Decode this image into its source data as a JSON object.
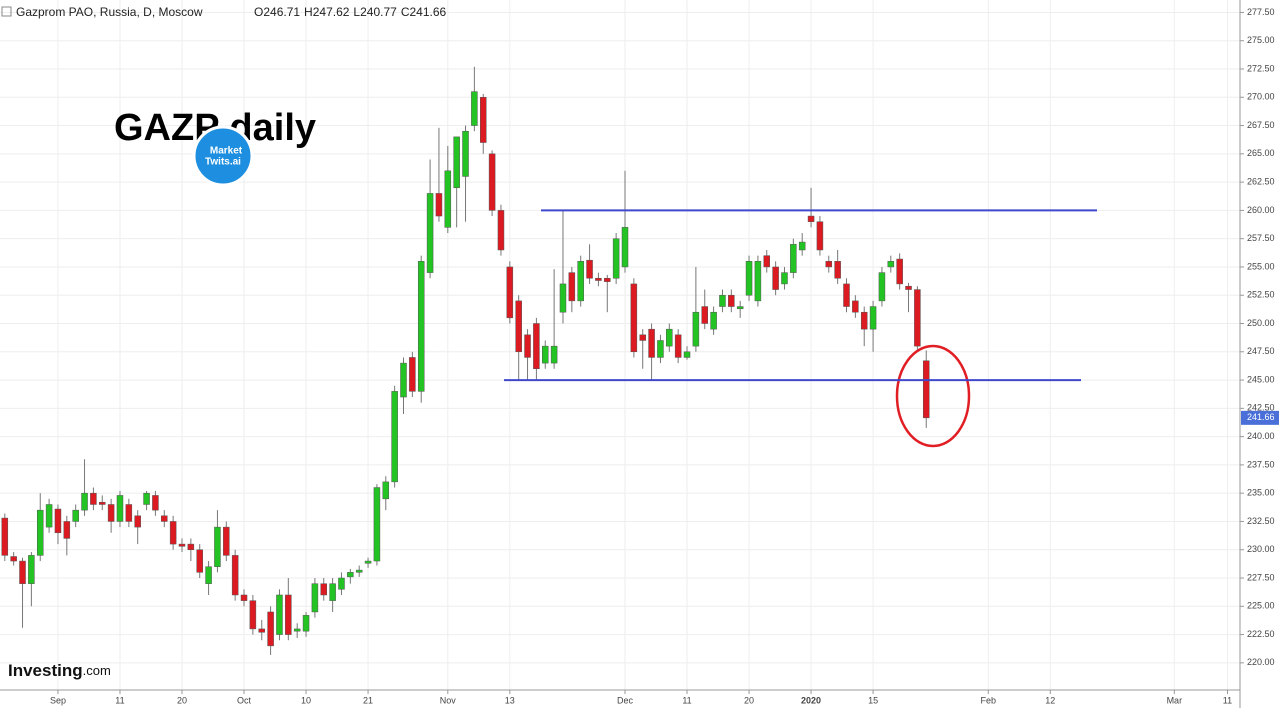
{
  "chart_data": {
    "type": "candlestick",
    "header": "Gazprom PAO, Russia, D, Moscow",
    "ohlc_legend": [
      "O",
      "H",
      "L",
      "C"
    ],
    "annotation": "GAZP daily",
    "logo": [
      "Market",
      "Twits.ai"
    ],
    "brand": [
      "Investing",
      ".com"
    ],
    "up_color": "#22c322",
    "down_color": "#dc1a22",
    "grid": true,
    "categories": [
      null,
      null,
      null,
      null,
      null,
      null,
      "Sep",
      null,
      null,
      null,
      null,
      null,
      null,
      "11",
      null,
      null,
      null,
      null,
      null,
      null,
      "20",
      null,
      null,
      null,
      null,
      null,
      null,
      "Oct",
      null,
      null,
      null,
      null,
      null,
      null,
      "10",
      null,
      null,
      null,
      null,
      null,
      null,
      "21",
      null,
      null,
      null,
      null,
      null,
      null,
      null,
      null,
      "Nov",
      null,
      null,
      null,
      null,
      null,
      null,
      "13",
      null,
      null,
      null,
      null,
      null,
      null,
      null,
      null,
      null,
      null,
      null,
      null,
      "Dec",
      null,
      null,
      null,
      null,
      null,
      null,
      "11",
      null,
      null,
      null,
      null,
      null,
      null,
      "20",
      null,
      null,
      null,
      null,
      null,
      null,
      "2020",
      null,
      null,
      null,
      null,
      null,
      null,
      "15",
      null,
      null,
      null,
      null,
      null,
      null,
      null,
      null,
      null,
      null,
      null,
      null,
      "Feb",
      null,
      null,
      null,
      null,
      null,
      null,
      "12",
      null,
      null,
      null,
      null,
      null,
      null,
      null,
      null,
      null,
      null,
      null,
      null,
      null,
      "Mar",
      null,
      null,
      null,
      null,
      null,
      "11",
      null
    ],
    "open": [
      232.8,
      229.4,
      229,
      227,
      229.5,
      232,
      233.6,
      232.5,
      232.5,
      233.5,
      235,
      234.2,
      234,
      232.5,
      234,
      233,
      234,
      234.8,
      233,
      232.5,
      230.5,
      230.5,
      230,
      227,
      228.5,
      232,
      229.5,
      226,
      225.5,
      223,
      224.5,
      222.5,
      226,
      222.8,
      222.8,
      224.5,
      227,
      225.5,
      226.5,
      227.6,
      228,
      228.8,
      229,
      234.5,
      236,
      243.5,
      247,
      244,
      254.5,
      261.5,
      258.5,
      262,
      263,
      267.5,
      270,
      265,
      260,
      255,
      252,
      249,
      250,
      246.5,
      246.5,
      251,
      254.5,
      252,
      255.6,
      254,
      254,
      254,
      255,
      253.5,
      249,
      249.5,
      247,
      248,
      249,
      247,
      248,
      251.5,
      249.5,
      251.5,
      252.5,
      251.3,
      252.5,
      252,
      256,
      255,
      253.5,
      254.5,
      256.5,
      259.5,
      259,
      255.5,
      255.5,
      253.5,
      252,
      251,
      249.5,
      252,
      255,
      255.7,
      253.3,
      253,
      246.71,
      null,
      null,
      null,
      null,
      null,
      null,
      null,
      null,
      null,
      null,
      null,
      null,
      null,
      null,
      null,
      null,
      null,
      null,
      null,
      null,
      null,
      null,
      null,
      null,
      null,
      null,
      null,
      null,
      null,
      null,
      null,
      null,
      null,
      null,
      null
    ],
    "high": [
      233.2,
      229.8,
      229.3,
      229.8,
      235,
      234.5,
      234,
      233,
      234,
      238,
      235.5,
      234.8,
      234.5,
      235.2,
      234.5,
      233.5,
      235.2,
      235.2,
      233.5,
      233,
      231,
      231,
      230.5,
      229,
      233.5,
      232.5,
      230,
      226.5,
      226,
      223.8,
      225,
      226.5,
      227.5,
      223.5,
      224.5,
      227.5,
      227.5,
      227.5,
      228,
      228.3,
      228.6,
      229.3,
      235.8,
      236.5,
      244.5,
      247,
      247.5,
      256,
      264.5,
      267.3,
      265.7,
      266.5,
      267.5,
      272.7,
      270.3,
      265.3,
      260.5,
      255.5,
      252.5,
      249.5,
      250.5,
      248.5,
      254.8,
      260,
      255,
      256,
      257,
      254.5,
      254.3,
      258,
      263.5,
      254,
      249.5,
      250,
      249,
      250,
      249.5,
      248,
      255,
      253,
      251.5,
      253,
      253,
      252,
      256,
      256,
      256.5,
      255.5,
      255,
      257.5,
      258,
      262,
      259.5,
      256,
      256.5,
      254,
      252.5,
      251.5,
      252,
      255,
      256,
      256.2,
      253.6,
      253.3,
      247.62,
      null,
      null,
      null,
      null,
      null,
      null,
      null,
      null,
      null,
      null,
      null,
      null,
      null,
      null,
      null,
      null,
      null,
      null,
      null,
      null,
      null,
      null,
      null,
      null,
      null,
      null,
      null,
      null,
      null,
      null,
      null,
      null,
      null,
      null,
      null
    ],
    "low": [
      229,
      228.6,
      223.1,
      225,
      229,
      231.5,
      230.5,
      229.5,
      232,
      233,
      233.5,
      233.5,
      231.5,
      232,
      232,
      230.5,
      233.5,
      233,
      232,
      230,
      229.8,
      229,
      227.5,
      226,
      228,
      229,
      225.5,
      225,
      222.5,
      222,
      220.7,
      222,
      222,
      222.2,
      222.3,
      224,
      225.5,
      224.5,
      226,
      227,
      227.6,
      228.4,
      228.6,
      233.5,
      235.5,
      242,
      243.5,
      243,
      254,
      259,
      258,
      258.5,
      259,
      267,
      265,
      259.5,
      256,
      250,
      245,
      245,
      245,
      246,
      246,
      250,
      251,
      251.5,
      253.5,
      253.3,
      251,
      253.5,
      254.5,
      247,
      246,
      245,
      246.5,
      247.5,
      246.5,
      246.8,
      247.5,
      249.5,
      249,
      251,
      251,
      250.5,
      252,
      251.5,
      254.5,
      252.5,
      253,
      254,
      256,
      258.5,
      256,
      254.5,
      253.5,
      251,
      250.5,
      248,
      247.5,
      251.5,
      254.5,
      253,
      251,
      247.5,
      240.77,
      null,
      null,
      null,
      null,
      null,
      null,
      null,
      null,
      null,
      null,
      null,
      null,
      null,
      null,
      null,
      null,
      null,
      null,
      null,
      null,
      null,
      null,
      null,
      null,
      null,
      null,
      null,
      null,
      null,
      null,
      null,
      null,
      null,
      null,
      null
    ],
    "close": [
      229.5,
      229,
      227,
      229.5,
      233.5,
      234,
      231.5,
      231,
      233.5,
      235,
      234,
      234,
      232.5,
      234.8,
      232.5,
      232,
      235,
      233.5,
      232.5,
      230.5,
      230.3,
      230,
      228,
      228.5,
      232,
      229.5,
      226,
      225.5,
      223,
      222.7,
      221.5,
      226,
      222.5,
      223,
      224.2,
      227,
      226,
      227,
      227.5,
      228,
      228.2,
      229,
      235.5,
      236,
      244,
      246.5,
      244,
      255.5,
      261.5,
      259.5,
      263.5,
      266.5,
      267,
      270.5,
      266,
      260,
      256.5,
      250.5,
      247.5,
      247,
      246,
      248,
      248,
      253.5,
      252,
      255.5,
      254,
      253.8,
      253.7,
      257.5,
      258.5,
      247.5,
      248.5,
      247,
      248.5,
      249.5,
      247,
      247.5,
      251,
      250,
      251,
      252.5,
      251.5,
      251.5,
      255.5,
      255.5,
      255,
      253,
      254.5,
      257,
      257.2,
      259,
      256.5,
      255,
      254,
      251.5,
      251,
      249.5,
      251.5,
      254.5,
      255.5,
      253.5,
      253,
      248,
      241.66,
      null,
      null,
      null,
      null,
      null,
      null,
      null,
      null,
      null,
      null,
      null,
      null,
      null,
      null,
      null,
      null,
      null,
      null,
      null,
      null,
      null,
      null,
      null,
      null,
      null,
      null,
      null,
      null,
      null,
      null,
      null,
      null,
      null,
      null,
      null
    ],
    "hlines": [
      {
        "value": 260,
        "color": "#3f48cc"
      },
      {
        "value": 245,
        "color": "#3f48cc"
      }
    ],
    "ylim": [
      217.6,
      278.6
    ],
    "yticks": [
      {
        "value": 220,
        "label": "220.00"
      },
      {
        "value": 222.5,
        "label": "222.50"
      },
      {
        "value": 225,
        "label": "225.00"
      },
      {
        "value": 227.5,
        "label": "227.50"
      },
      {
        "value": 230,
        "label": "230.00"
      },
      {
        "value": 232.5,
        "label": "232.50"
      },
      {
        "value": 235,
        "label": "235.00"
      },
      {
        "value": 237.5,
        "label": "237.50"
      },
      {
        "value": 240,
        "label": "240.00"
      },
      {
        "value": 242.5,
        "label": "242.50"
      },
      {
        "value": 245,
        "label": "245.00"
      },
      {
        "value": 247.5,
        "label": "247.50"
      },
      {
        "value": 250,
        "label": "250.00"
      },
      {
        "value": 252.5,
        "label": "252.50"
      },
      {
        "value": 255,
        "label": "255.00"
      },
      {
        "value": 257.5,
        "label": "257.50"
      },
      {
        "value": 260,
        "label": "260.00"
      },
      {
        "value": 262.5,
        "label": "262.50"
      },
      {
        "value": 265,
        "label": "265.00"
      },
      {
        "value": 267.5,
        "label": "267.50"
      },
      {
        "value": 270,
        "label": "270.00"
      },
      {
        "value": 272.5,
        "label": "272.50"
      },
      {
        "value": 275,
        "label": "275.00"
      },
      {
        "value": 277.5,
        "label": "277.50"
      }
    ]
  }
}
